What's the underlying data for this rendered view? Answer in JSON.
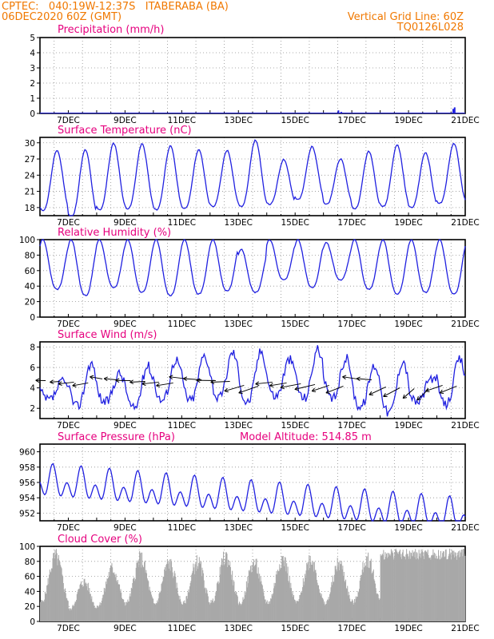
{
  "header": {
    "line1_left": "CPTEC:   040:19W-12:37S   ITABERABA (BA)",
    "line2_left": "06DEC2020 60Z (GMT)",
    "line1_right": "Vertical Grid Line: 60Z",
    "line2_right": "TQ0126L028"
  },
  "colors": {
    "header": "#f07800",
    "title": "#e6007e",
    "series": "#2020e0",
    "cloud": "#a8a8a8",
    "wind_arrow": "#000000"
  },
  "x_ticks": [
    "7DEC",
    "9DEC",
    "11DEC",
    "13DEC",
    "15DEC",
    "17DEC",
    "19DEC",
    "21DEC"
  ],
  "model_altitude": "Model Altitude: 514.85 m",
  "chart_data": [
    {
      "id": "precip",
      "type": "bar",
      "title": "Precipitation (mm/h)",
      "ylim": [
        0,
        5
      ],
      "yticks": [
        "0",
        "1",
        "2",
        "3",
        "4",
        "5"
      ],
      "x_days": [
        0,
        10.5,
        10.6,
        10.75,
        14.55,
        14.6
      ],
      "values": [
        0.05,
        0.2,
        0.1,
        0.05,
        0.3,
        0.4
      ]
    },
    {
      "id": "temp",
      "type": "line",
      "title": "Surface Temperature (nC)",
      "ylim": [
        16.5,
        31
      ],
      "yticks": [
        "18",
        "21",
        "24",
        "27",
        "30"
      ],
      "daily_min": [
        17.5,
        16.3,
        17.6,
        17.8,
        17.6,
        17.8,
        18.2,
        18.2,
        18.6,
        19.5,
        18.6,
        17.8,
        18.2,
        18.0,
        18.8
      ],
      "daily_max": [
        28.6,
        28.7,
        29.9,
        29.8,
        29.4,
        28.7,
        28.6,
        30.5,
        26.9,
        29.3,
        27.0,
        28.4,
        29.6,
        28.2,
        29.9
      ]
    },
    {
      "id": "rh",
      "type": "line",
      "title": "Relative Humidity (%)",
      "ylim": [
        0,
        100
      ],
      "yticks": [
        "0",
        "20",
        "40",
        "60",
        "80",
        "100"
      ],
      "daily_min": [
        36,
        28,
        38,
        32,
        28,
        30,
        34,
        32,
        48,
        38,
        48,
        36,
        30,
        32,
        30
      ],
      "daily_max": [
        100,
        100,
        100,
        100,
        100,
        100,
        100,
        88,
        100,
        100,
        96,
        100,
        100,
        100,
        100
      ]
    },
    {
      "id": "wind",
      "type": "line",
      "title": "Surface Wind (m/s)",
      "ylim": [
        1,
        8.5
      ],
      "yticks": [
        "2",
        "4",
        "6",
        "8"
      ],
      "speed_min": [
        2.8,
        2.2,
        2.6,
        2.0,
        2.8,
        2.8,
        3.0,
        2.6,
        3.2,
        3.0,
        2.9,
        2.2,
        1.6,
        2.6,
        2.4
      ],
      "speed_max": [
        4.6,
        6.4,
        5.4,
        6.2,
        6.8,
        7.2,
        7.5,
        7.6,
        6.8,
        7.8,
        6.9,
        6.2,
        6.7,
        5.0,
        6.8
      ]
    },
    {
      "id": "pressure",
      "type": "line",
      "title": "Surface Pressure (hPa)",
      "ylim": [
        951,
        961
      ],
      "yticks": [
        "952",
        "954",
        "956",
        "958",
        "960"
      ],
      "trend_start": 956.0,
      "trend_end": 951.5,
      "diurnal_amplitude": 2.6
    },
    {
      "id": "cloud",
      "type": "bar",
      "title": "Cloud Cover (%)",
      "ylim": [
        0,
        100
      ],
      "yticks": [
        "0",
        "20",
        "40",
        "60",
        "80",
        "100"
      ],
      "daily_peak": [
        98,
        60,
        80,
        95,
        88,
        90,
        98,
        88,
        96,
        95,
        88,
        96,
        98,
        98,
        95
      ]
    }
  ]
}
